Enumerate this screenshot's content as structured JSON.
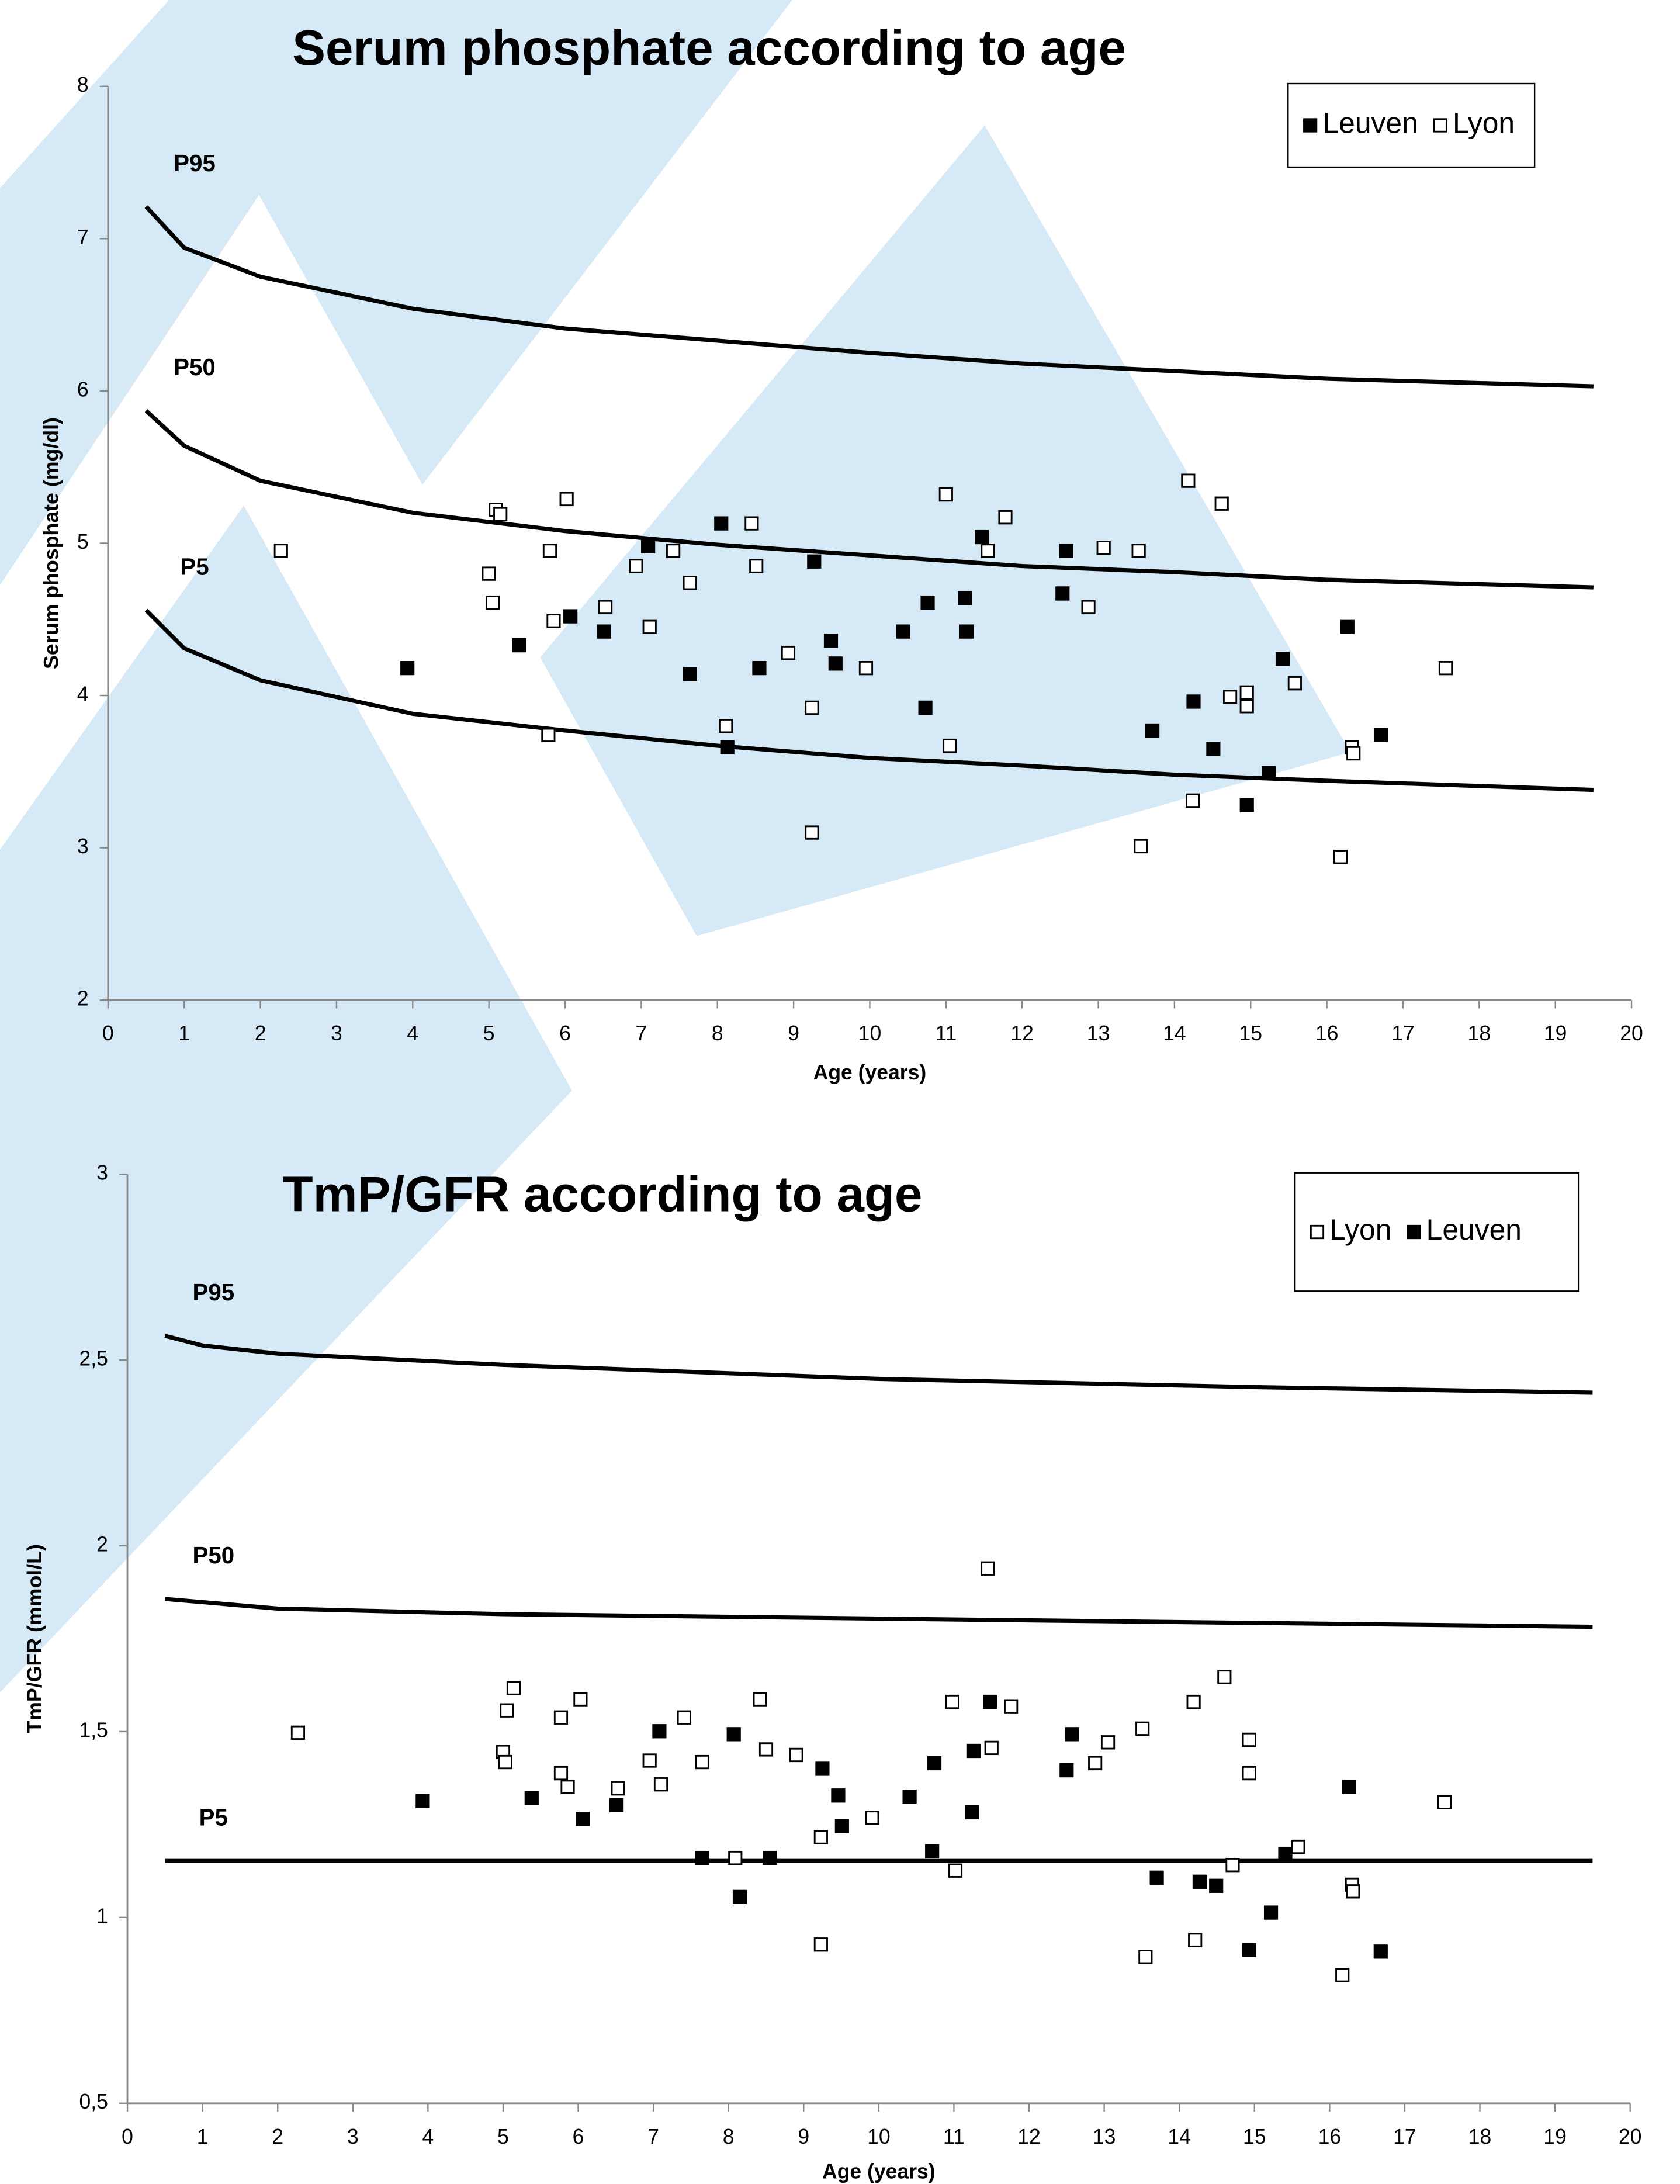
{
  "chart_data": [
    {
      "type": "scatter",
      "title": "Serum phosphate according to age",
      "x_label": "Age (years)",
      "y_label": "Serum phosphate  (mg/dl)",
      "xlim": [
        0,
        20
      ],
      "xticks": [
        0,
        1,
        2,
        3,
        4,
        5,
        6,
        7,
        8,
        9,
        10,
        11,
        12,
        13,
        14,
        15,
        16,
        17,
        18,
        19,
        20
      ],
      "ylim": [
        2,
        8
      ],
      "yticks": [
        2,
        3,
        4,
        5,
        6,
        7,
        8
      ],
      "legend": "upper right",
      "series": [
        {
          "name": "Leuven",
          "marker": "filled",
          "color": "#000000",
          "x": [
            3.93,
            5.4,
            6.07,
            6.51,
            7.09,
            7.64,
            8.05,
            8.13,
            8.55,
            9.27,
            9.49,
            9.55,
            10.44,
            10.73,
            10.76,
            11.25,
            11.27,
            11.47,
            12.53,
            12.58,
            13.71,
            14.25,
            14.51,
            14.95,
            15.24,
            15.42,
            16.27,
            16.71
          ],
          "values": [
            4.18,
            4.33,
            4.52,
            4.42,
            4.98,
            4.14,
            5.13,
            3.66,
            4.18,
            4.88,
            4.36,
            4.21,
            4.42,
            3.92,
            4.61,
            4.64,
            4.42,
            5.04,
            4.67,
            4.95,
            3.77,
            3.96,
            3.65,
            3.28,
            3.49,
            4.24,
            4.45,
            3.74
          ]
        },
        {
          "name": "Lyon",
          "marker": "open",
          "color": "#000000",
          "x": [
            2.27,
            5.0,
            5.05,
            5.09,
            5.15,
            5.8,
            6.02,
            5.85,
            5.78,
            6.53,
            6.93,
            7.11,
            7.42,
            7.64,
            8.45,
            8.51,
            8.11,
            8.93,
            9.24,
            9.24,
            9.95,
            11.0,
            11.05,
            11.55,
            11.78,
            12.87,
            13.07,
            13.53,
            13.56,
            14.18,
            14.24,
            14.62,
            14.73,
            14.95,
            14.95,
            15.58,
            16.18,
            16.33,
            16.35,
            17.56
          ],
          "values": [
            4.95,
            4.8,
            4.61,
            5.22,
            5.19,
            4.95,
            5.29,
            4.49,
            3.74,
            4.58,
            4.85,
            4.45,
            4.95,
            4.74,
            5.13,
            4.85,
            3.8,
            4.28,
            3.92,
            3.1,
            4.18,
            5.32,
            3.67,
            4.95,
            5.17,
            4.58,
            4.97,
            4.95,
            3.01,
            5.41,
            3.31,
            5.26,
            3.99,
            4.02,
            3.93,
            4.08,
            2.94,
            3.66,
            3.62,
            4.18
          ]
        }
      ],
      "curves": [
        {
          "name": "P95",
          "color": "#000000",
          "x": [
            0.5,
            1,
            2,
            4,
            6,
            8,
            10,
            12,
            14,
            16,
            19.5
          ],
          "values": [
            7.21,
            6.94,
            6.75,
            6.54,
            6.41,
            6.33,
            6.25,
            6.18,
            6.13,
            6.08,
            6.03
          ]
        },
        {
          "name": "P50",
          "color": "#000000",
          "x": [
            0.5,
            1,
            2,
            4,
            6,
            8,
            10,
            12,
            14,
            16,
            19.5
          ],
          "values": [
            5.87,
            5.64,
            5.41,
            5.2,
            5.08,
            4.99,
            4.92,
            4.85,
            4.81,
            4.76,
            4.71
          ]
        },
        {
          "name": "P5",
          "color": "#000000",
          "x": [
            0.5,
            1,
            2,
            4,
            6,
            8,
            10,
            12,
            14,
            16,
            19.5
          ],
          "values": [
            4.56,
            4.31,
            4.1,
            3.88,
            3.77,
            3.67,
            3.59,
            3.54,
            3.48,
            3.44,
            3.38
          ]
        }
      ]
    },
    {
      "type": "scatter",
      "title": "TmP/GFR according to age",
      "x_label": "Age (years)",
      "y_label": "TmP/GFR (mmol/L)",
      "xlim": [
        0,
        20
      ],
      "xticks": [
        0,
        1,
        2,
        3,
        4,
        5,
        6,
        7,
        8,
        9,
        10,
        11,
        12,
        13,
        14,
        15,
        16,
        17,
        18,
        19,
        20
      ],
      "ylim": [
        0.5,
        3
      ],
      "yticks": [
        {
          "value": 0.5,
          "label": "0,5"
        },
        1,
        {
          "value": 1.5,
          "label": "1,5"
        },
        2,
        {
          "value": 2.5,
          "label": "2,5"
        },
        3
      ],
      "legend": "upper right",
      "series": [
        {
          "name": "Lyon",
          "marker": "open",
          "color": "#000000",
          "x": [
            2.27,
            5.0,
            5.05,
            5.03,
            5.14,
            5.77,
            5.77,
            5.86,
            6.03,
            6.53,
            6.95,
            7.1,
            7.41,
            7.65,
            8.09,
            8.42,
            8.5,
            8.9,
            9.23,
            9.23,
            9.91,
            10.98,
            11.02,
            11.45,
            11.5,
            11.76,
            12.88,
            13.05,
            13.51,
            13.55,
            14.19,
            14.21,
            14.6,
            14.71,
            14.93,
            14.93,
            15.58,
            16.17,
            16.3,
            16.31,
            17.53
          ],
          "values": [
            1.497,
            1.445,
            1.557,
            1.418,
            1.617,
            1.388,
            1.538,
            1.351,
            1.587,
            1.347,
            1.422,
            1.358,
            1.538,
            1.418,
            1.16,
            1.587,
            1.452,
            1.437,
            1.216,
            0.927,
            1.268,
            1.58,
            1.126,
            1.939,
            1.456,
            1.568,
            1.415,
            1.471,
            1.508,
            0.894,
            1.58,
            0.939,
            1.647,
            1.141,
            1.478,
            1.388,
            1.19,
            0.845,
            1.088,
            1.07,
            1.31
          ]
        },
        {
          "name": "Leuven",
          "marker": "filled",
          "color": "#000000",
          "x": [
            3.93,
            5.38,
            6.06,
            6.51,
            7.08,
            7.65,
            8.07,
            8.15,
            8.55,
            9.25,
            9.46,
            9.51,
            10.41,
            10.71,
            10.74,
            11.24,
            11.26,
            11.48,
            12.5,
            12.57,
            13.7,
            14.27,
            14.49,
            14.93,
            15.22,
            15.41,
            16.26,
            16.68
          ],
          "values": [
            1.313,
            1.321,
            1.265,
            1.302,
            1.501,
            1.16,
            1.493,
            1.055,
            1.16,
            1.4,
            1.328,
            1.246,
            1.325,
            1.178,
            1.415,
            1.283,
            1.448,
            1.58,
            1.396,
            1.493,
            1.107,
            1.096,
            1.085,
            0.912,
            1.013,
            1.171,
            1.351,
            0.908
          ]
        }
      ],
      "curves": [
        {
          "name": "P95",
          "color": "#000000",
          "x": [
            0.5,
            1,
            2,
            5,
            10,
            15,
            19.5
          ],
          "values": [
            2.565,
            2.539,
            2.517,
            2.487,
            2.449,
            2.427,
            2.412
          ]
        },
        {
          "name": "P50",
          "color": "#000000",
          "x": [
            0.5,
            2,
            5,
            10,
            19.5
          ],
          "values": [
            1.857,
            1.831,
            1.816,
            1.804,
            1.782
          ]
        },
        {
          "name": "P5",
          "color": "#000000",
          "x": [
            0.5,
            19.5
          ],
          "values": [
            1.152,
            1.152
          ]
        }
      ]
    }
  ]
}
